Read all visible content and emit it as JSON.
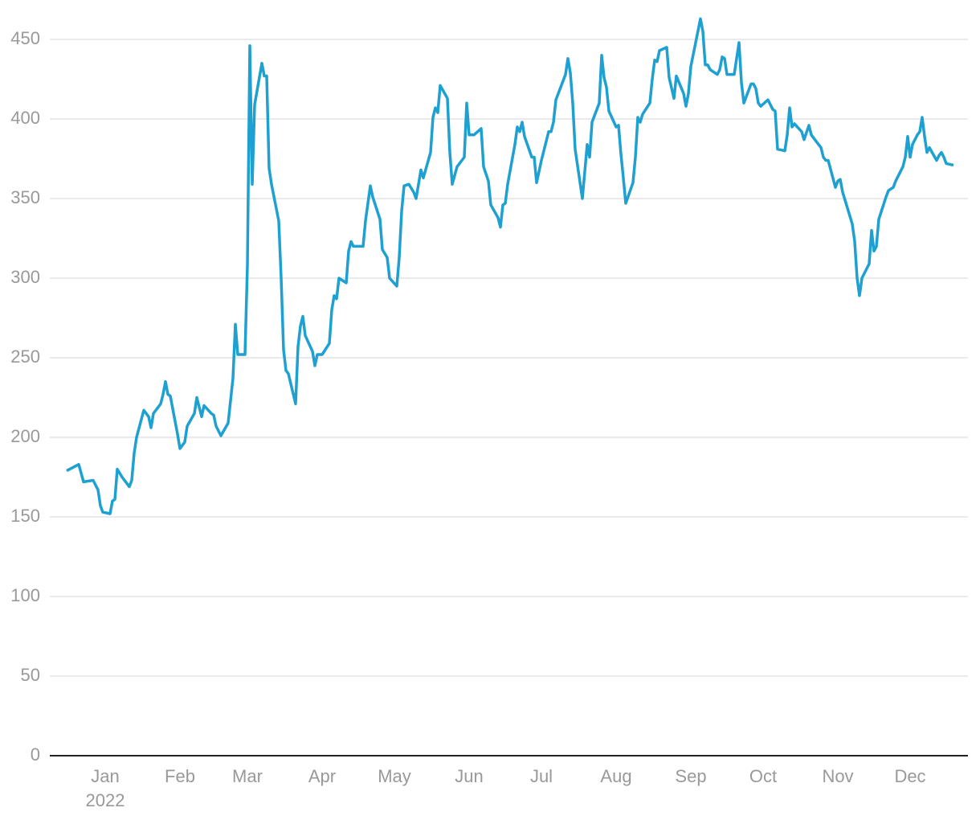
{
  "chart_data": {
    "type": "line",
    "x_sublabel": "2022",
    "xlim": [
      -8,
      373
    ],
    "xticks": [
      {
        "value": 15,
        "label": "Jan"
      },
      {
        "value": 46,
        "label": "Feb"
      },
      {
        "value": 74,
        "label": "Mar"
      },
      {
        "value": 105,
        "label": "Apr"
      },
      {
        "value": 135,
        "label": "May"
      },
      {
        "value": 166,
        "label": "Jun"
      },
      {
        "value": 196,
        "label": "Jul"
      },
      {
        "value": 227,
        "label": "Aug"
      },
      {
        "value": 258,
        "label": "Sep"
      },
      {
        "value": 288,
        "label": "Oct"
      },
      {
        "value": 319,
        "label": "Nov"
      },
      {
        "value": 349,
        "label": "Dec"
      }
    ],
    "ylim": [
      0,
      470
    ],
    "yticks": [
      0,
      50,
      100,
      150,
      200,
      250,
      300,
      350,
      400,
      450
    ],
    "grid": true,
    "color": "#1ea0d0",
    "x": [
      -1,
      4,
      6,
      10,
      12,
      13,
      14,
      17,
      18,
      19,
      20,
      22,
      25,
      26,
      27,
      28,
      31,
      33,
      34,
      35,
      38,
      39,
      40,
      41,
      42,
      45,
      46,
      48,
      49,
      52,
      53,
      55,
      56,
      59,
      60,
      61,
      63,
      66,
      68,
      69,
      70,
      73,
      74,
      75,
      76,
      77,
      80,
      81,
      82,
      83,
      84,
      87,
      88,
      89,
      90,
      91,
      94,
      95,
      96,
      97,
      98,
      101,
      102,
      103,
      105,
      108,
      109,
      110,
      111,
      112,
      115,
      116,
      117,
      118,
      122,
      123,
      125,
      126,
      129,
      130,
      132,
      133,
      136,
      137,
      138,
      139,
      141,
      143,
      144,
      145,
      146,
      147,
      150,
      151,
      152,
      153,
      154,
      157,
      158,
      159,
      161,
      164,
      165,
      166,
      168,
      171,
      172,
      174,
      175,
      178,
      179,
      180,
      181,
      182,
      185,
      186,
      187,
      188,
      189,
      192,
      193,
      194,
      196,
      199,
      200,
      201,
      202,
      206,
      207,
      208,
      209,
      210,
      213,
      215,
      216,
      217,
      220,
      221,
      222,
      223,
      224,
      227,
      228,
      229,
      230,
      231,
      234,
      235,
      236,
      237,
      238,
      241,
      242,
      243,
      244,
      245,
      248,
      249,
      251,
      252,
      255,
      256,
      257,
      258,
      262,
      263,
      264,
      265,
      266,
      269,
      270,
      271,
      272,
      273,
      276,
      278,
      279,
      280,
      283,
      284,
      285,
      286,
      287,
      290,
      292,
      293,
      294,
      297,
      298,
      299,
      300,
      301,
      304,
      305,
      307,
      308,
      311,
      312,
      313,
      314,
      315,
      318,
      319,
      320,
      321,
      324,
      325,
      326,
      327,
      328,
      329,
      332,
      333,
      334,
      335,
      336,
      339,
      340,
      342,
      343,
      346,
      347,
      348,
      349,
      350,
      352,
      353,
      354,
      355,
      356,
      357,
      360,
      361,
      362,
      363,
      364,
      367
    ],
    "values": [
      179,
      183,
      172,
      173,
      167,
      157,
      153,
      152,
      160,
      161,
      180,
      175,
      169,
      173,
      190,
      200,
      217,
      213,
      206,
      215,
      221,
      227,
      235,
      227,
      226,
      202,
      193,
      197,
      207,
      215,
      225,
      213,
      220,
      215,
      214,
      207,
      201,
      209,
      237,
      271,
      252,
      252,
      308,
      446,
      359,
      409,
      435,
      427,
      427,
      369,
      359,
      336,
      300,
      255,
      242,
      240,
      221,
      257,
      270,
      276,
      264,
      254,
      245,
      252,
      252,
      259,
      280,
      289,
      287,
      300,
      297,
      317,
      323,
      320,
      320,
      336,
      358,
      351,
      337,
      318,
      313,
      300,
      295,
      313,
      342,
      358,
      359,
      354,
      350,
      359,
      368,
      363,
      379,
      401,
      407,
      404,
      421,
      413,
      379,
      359,
      370,
      376,
      410,
      390,
      390,
      394,
      370,
      361,
      346,
      338,
      332,
      346,
      347,
      359,
      384,
      395,
      392,
      398,
      389,
      376,
      376,
      360,
      374,
      392,
      392,
      398,
      412,
      428,
      438,
      429,
      410,
      381,
      350,
      384,
      376,
      398,
      410,
      440,
      426,
      420,
      405,
      395,
      396,
      378,
      363,
      347,
      360,
      376,
      401,
      398,
      403,
      410,
      425,
      437,
      436,
      443,
      445,
      426,
      413,
      427,
      416,
      408,
      416,
      433,
      463,
      455,
      434,
      434,
      431,
      428,
      431,
      439,
      438,
      428,
      428,
      448,
      423,
      410,
      422,
      422,
      419,
      410,
      408,
      412,
      406,
      405,
      381,
      380,
      390,
      407,
      395,
      397,
      392,
      387,
      396,
      390,
      384,
      382,
      376,
      374,
      374,
      357,
      361,
      362,
      354,
      339,
      334,
      323,
      300,
      289,
      300,
      309,
      330,
      317,
      320,
      337,
      351,
      355,
      357,
      361,
      370,
      376,
      389,
      376,
      384,
      390,
      392,
      401,
      389,
      379,
      382,
      374,
      377,
      379,
      376,
      372,
      371
    ]
  }
}
